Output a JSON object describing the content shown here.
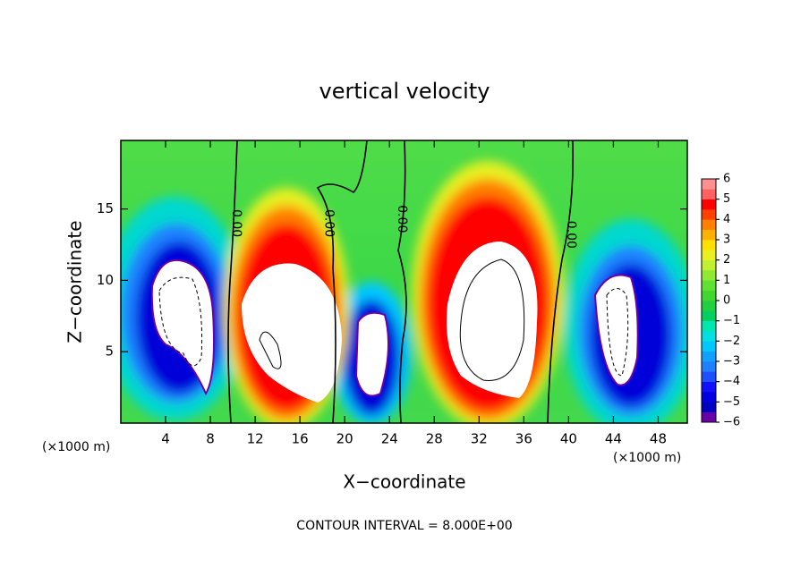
{
  "chart_data": {
    "type": "contour",
    "title": "vertical velocity",
    "xlabel": "X−coordinate",
    "ylabel": "Z−coordinate",
    "x_unit_label": "(×1000 m)",
    "y_unit_label": "(×1000 m)",
    "footnote": "CONTOUR INTERVAL = 8.000E+00",
    "xlim": [
      0,
      50.6
    ],
    "xticks": [
      4,
      8,
      12,
      16,
      20,
      24,
      28,
      32,
      36,
      40,
      44,
      48
    ],
    "ylim": [
      0,
      19.8
    ],
    "yticks": [
      5,
      10,
      15
    ],
    "colorbar_lim": [
      -6,
      6
    ],
    "colorbar_ticks": [
      {
        "value": -6,
        "label": "−6"
      },
      {
        "value": -5,
        "label": "−5"
      },
      {
        "value": -4,
        "label": "−4"
      },
      {
        "value": -3,
        "label": "−3"
      },
      {
        "value": -2,
        "label": "−2"
      },
      {
        "value": -1,
        "label": "−1"
      },
      0,
      1,
      2,
      3,
      4,
      5,
      6
    ],
    "colormap": [
      "#6a00a8",
      "#0000c0",
      "#0000e0",
      "#1010ff",
      "#1e50ff",
      "#1e80ff",
      "#10a0ff",
      "#00c8ff",
      "#00e0e0",
      "#00e8b0",
      "#00d060",
      "#20d040",
      "#40d830",
      "#60e030",
      "#90e830",
      "#c0f030",
      "#e8f020",
      "#ffe000",
      "#ffb000",
      "#ff8000",
      "#ff4000",
      "#ff0000",
      "#ff6060",
      "#ff9090"
    ],
    "contour_labels": [
      {
        "text": "0.00",
        "x": 10.3,
        "z": 14
      },
      {
        "text": "0.00",
        "x": 18.6,
        "z": 14
      },
      {
        "text": "0.00",
        "x": 25.1,
        "z": 14.3
      },
      {
        "text": "0.00",
        "x": 40.2,
        "z": 13.2
      }
    ]
  }
}
